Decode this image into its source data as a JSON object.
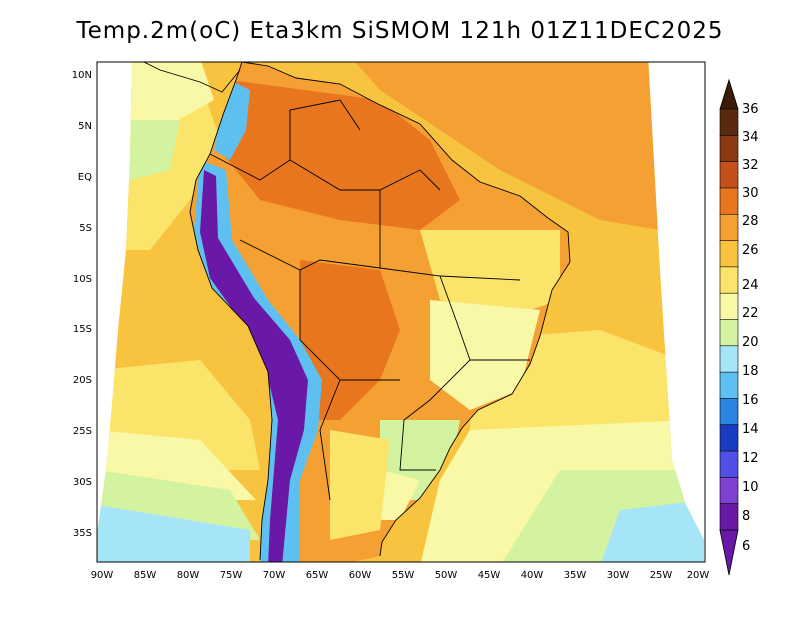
{
  "title": "Temp.2m(oC) Eta3km SiSMOM 121h 01Z11DEC2025",
  "lat_labels": [
    "10N",
    "5N",
    "EQ",
    "5S",
    "10S",
    "15S",
    "20S",
    "25S",
    "30S",
    "35S"
  ],
  "lon_labels": [
    "90W",
    "85W",
    "80W",
    "75W",
    "70W",
    "65W",
    "60W",
    "55W",
    "50W",
    "45W",
    "40W",
    "35W",
    "30W",
    "25W",
    "20W"
  ],
  "colorbar": {
    "labels": [
      "36",
      "34",
      "32",
      "30",
      "28",
      "26",
      "24",
      "22",
      "20",
      "18",
      "16",
      "14",
      "12",
      "10",
      "8",
      "6"
    ],
    "colors": [
      "#5a2a10",
      "#8b3a14",
      "#c4501a",
      "#e8761e",
      "#f5a033",
      "#f8c440",
      "#fbe46a",
      "#f8f8a6",
      "#d4f3a0",
      "#a6e4f8",
      "#5ec0f0",
      "#2a84e0",
      "#1a3cc0",
      "#5050e8",
      "#8040d0",
      "#6a18a8"
    ],
    "arrow_top_color": "#3a1a08",
    "arrow_bottom_color": "#6a18a8"
  },
  "colors": {
    "ocean_warm": "#f8c440",
    "ocean_hot": "#f5a033",
    "ocean_mild": "#fbe46a",
    "ocean_cool": "#f8f8a6",
    "ocean_cold": "#d4f3a0",
    "ocean_south": "#a6e4f8",
    "land_hot": "#e8761e",
    "land_warm": "#f5a033",
    "andes_cold": "#6a18a8",
    "andes_cool": "#5ec0f0",
    "border": "#000000"
  }
}
